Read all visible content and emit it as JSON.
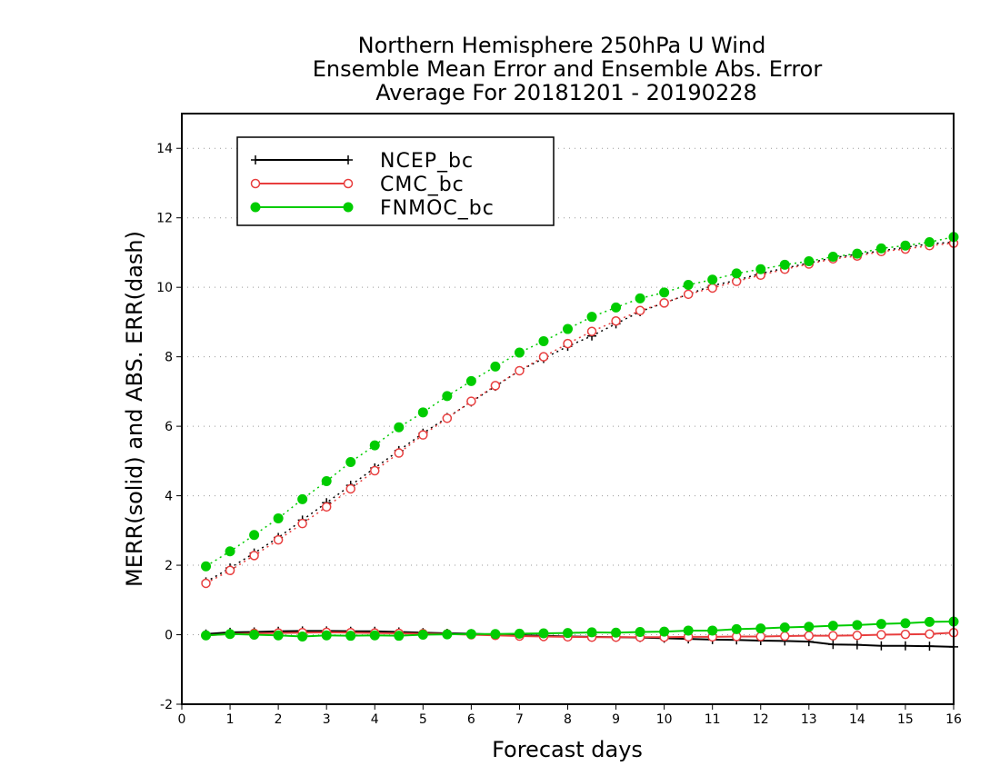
{
  "chart_data": {
    "type": "line",
    "title": [
      "Northern Hemisphere 250hPa U Wind",
      "Ensemble Mean Error and Ensemble Abs. Error",
      "Average For 20181201 - 20190228"
    ],
    "xlabel": "Forecast days",
    "ylabel": "MERR(solid) and ABS. ERR(dash)",
    "xlim": [
      0,
      16
    ],
    "ylim": [
      -2,
      15
    ],
    "xticks": [
      0,
      1,
      2,
      3,
      4,
      5,
      6,
      7,
      8,
      9,
      10,
      11,
      12,
      13,
      14,
      15,
      16
    ],
    "xtick_labels": [
      "0",
      "1",
      "2",
      "3",
      "4",
      "5",
      "6",
      "7",
      "8",
      "9",
      "10",
      "11",
      "12",
      "13",
      "14",
      "15",
      "16"
    ],
    "yticks": [
      -2,
      0,
      2,
      4,
      6,
      8,
      10,
      12,
      14
    ],
    "ytick_labels": [
      "-2",
      "0",
      "2",
      "4",
      "6",
      "8",
      "10",
      "12",
      "14"
    ],
    "grid": "horizontal dotted",
    "legend_position": "top-left",
    "x": [
      0.5,
      1,
      1.5,
      2,
      2.5,
      3,
      3.5,
      4,
      4.5,
      5,
      5.5,
      6,
      6.5,
      7,
      7.5,
      8,
      8.5,
      9,
      9.5,
      10,
      10.5,
      11,
      11.5,
      12,
      12.5,
      13,
      13.5,
      14,
      14.5,
      15,
      15.5,
      16
    ],
    "series": [
      {
        "name": "NCEP_bc",
        "color": "#000000",
        "marker": "plus",
        "merr": [
          0.02,
          0.07,
          0.08,
          0.1,
          0.11,
          0.11,
          0.1,
          0.1,
          0.08,
          0.06,
          0.04,
          0.03,
          0.0,
          -0.02,
          -0.03,
          -0.05,
          -0.06,
          -0.07,
          -0.08,
          -0.1,
          -0.12,
          -0.14,
          -0.15,
          -0.17,
          -0.18,
          -0.2,
          -0.28,
          -0.29,
          -0.32,
          -0.32,
          -0.33,
          -0.35
        ],
        "abs_err": [
          1.52,
          1.92,
          2.35,
          2.8,
          3.3,
          3.8,
          4.3,
          4.8,
          5.3,
          5.8,
          6.25,
          6.7,
          7.15,
          7.6,
          7.95,
          8.3,
          8.6,
          8.95,
          9.3,
          9.55,
          9.8,
          10.05,
          10.2,
          10.4,
          10.55,
          10.7,
          10.85,
          10.95,
          11.05,
          11.15,
          11.25,
          11.3
        ]
      },
      {
        "name": "CMC_bc",
        "color": "#e83e3e",
        "marker": "open-circle",
        "merr": [
          -0.02,
          0.02,
          0.04,
          0.05,
          0.06,
          0.07,
          0.06,
          0.05,
          0.04,
          0.03,
          0.02,
          0.0,
          -0.02,
          -0.04,
          -0.05,
          -0.06,
          -0.07,
          -0.07,
          -0.07,
          -0.07,
          -0.06,
          -0.06,
          -0.05,
          -0.05,
          -0.04,
          -0.03,
          -0.03,
          -0.02,
          0.0,
          0.01,
          0.02,
          0.06
        ],
        "abs_err": [
          1.48,
          1.85,
          2.28,
          2.73,
          3.2,
          3.68,
          4.2,
          4.72,
          5.23,
          5.75,
          6.23,
          6.72,
          7.17,
          7.6,
          8.0,
          8.38,
          8.73,
          9.03,
          9.33,
          9.55,
          9.8,
          9.98,
          10.17,
          10.35,
          10.52,
          10.67,
          10.82,
          10.9,
          11.03,
          11.1,
          11.2,
          11.27
        ]
      },
      {
        "name": "FNMOC_bc",
        "color": "#00cc00",
        "marker": "filled-circle",
        "merr": [
          -0.02,
          0.02,
          0.0,
          -0.02,
          -0.05,
          -0.02,
          -0.03,
          -0.02,
          -0.03,
          0.0,
          0.01,
          0.02,
          0.02,
          0.03,
          0.04,
          0.05,
          0.07,
          0.06,
          0.08,
          0.09,
          0.12,
          0.12,
          0.16,
          0.18,
          0.21,
          0.23,
          0.26,
          0.28,
          0.31,
          0.33,
          0.37,
          0.38
        ],
        "abs_err": [
          1.97,
          2.4,
          2.87,
          3.35,
          3.9,
          4.42,
          4.97,
          5.45,
          5.97,
          6.4,
          6.87,
          7.3,
          7.72,
          8.12,
          8.45,
          8.8,
          9.15,
          9.42,
          9.68,
          9.85,
          10.07,
          10.22,
          10.4,
          10.52,
          10.65,
          10.75,
          10.88,
          10.97,
          11.12,
          11.2,
          11.3,
          11.45
        ]
      }
    ]
  }
}
